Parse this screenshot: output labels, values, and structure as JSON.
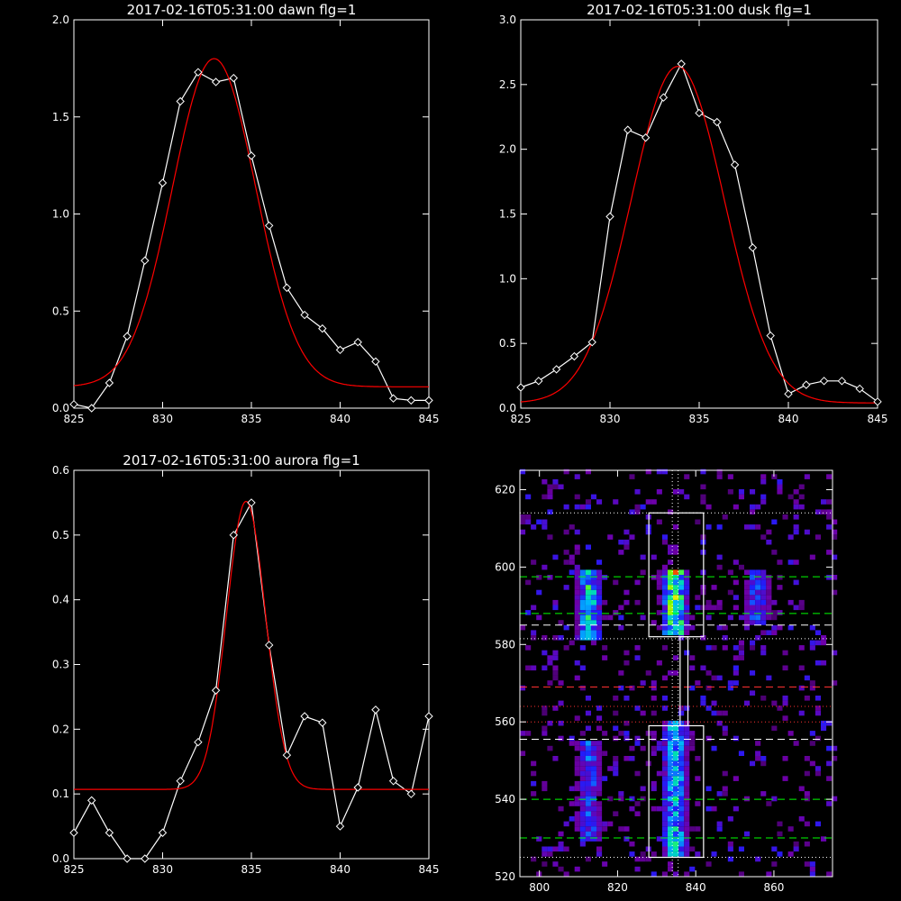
{
  "colors": {
    "background": "#000000",
    "axes": "#ffffff",
    "data_line": "#ffffff",
    "fit_line": "#ff0000"
  },
  "chart_data": [
    {
      "type": "line",
      "title": "2017-02-16T05:31:00 dawn flg=1",
      "xlim": [
        825,
        845
      ],
      "ylim": [
        0,
        2
      ],
      "xticks": [
        825,
        830,
        835,
        840,
        845
      ],
      "xtick_labels": [
        "825",
        "830",
        "835",
        "840",
        "845"
      ],
      "yticks": [
        0,
        0.5,
        1,
        1.5,
        2
      ],
      "ytick_labels": [
        "0.0",
        "0.5",
        "1.0",
        "1.5",
        "2.0"
      ],
      "series": [
        {
          "style": "white line with diamond markers",
          "x": [
            825,
            826,
            827,
            828,
            829,
            830,
            831,
            832,
            833,
            834,
            835,
            836,
            837,
            838,
            839,
            840,
            841,
            842,
            843,
            844,
            845
          ],
          "y": [
            0.02,
            0.0,
            0.13,
            0.37,
            0.76,
            1.16,
            1.58,
            1.73,
            1.68,
            1.7,
            1.3,
            0.94,
            0.62,
            0.48,
            0.41,
            0.3,
            0.34,
            0.24,
            0.05,
            0.04,
            0.04
          ]
        },
        {
          "style": "red gaussian fit",
          "model": {
            "peak_x": 832.9,
            "height": 1.69,
            "sigma": 2.35,
            "baseline": 0.11
          }
        }
      ]
    },
    {
      "type": "line",
      "title": "2017-02-16T05:31:00 dusk flg=1",
      "xlim": [
        825,
        845
      ],
      "ylim": [
        0,
        3
      ],
      "xticks": [
        825,
        830,
        835,
        840,
        845
      ],
      "xtick_labels": [
        "825",
        "830",
        "835",
        "840",
        "845"
      ],
      "yticks": [
        0,
        0.5,
        1,
        1.5,
        2,
        2.5,
        3
      ],
      "ytick_labels": [
        "0.0",
        "0.5",
        "1.0",
        "1.5",
        "2.0",
        "2.5",
        "3.0"
      ],
      "series": [
        {
          "style": "white line with diamond markers",
          "x": [
            825,
            826,
            827,
            828,
            829,
            830,
            831,
            832,
            833,
            834,
            835,
            836,
            837,
            838,
            839,
            840,
            841,
            842,
            843,
            844,
            845
          ],
          "y": [
            0.16,
            0.21,
            0.3,
            0.4,
            0.51,
            1.48,
            2.15,
            2.09,
            2.4,
            2.66,
            2.28,
            2.21,
            1.88,
            1.24,
            0.56,
            0.11,
            0.18,
            0.21,
            0.21,
            0.15,
            0.05
          ]
        },
        {
          "style": "red gaussian fit",
          "model": {
            "peak_x": 833.8,
            "height": 2.6,
            "sigma": 2.6,
            "baseline": 0.04
          }
        }
      ]
    },
    {
      "type": "line",
      "title": "2017-02-16T05:31:00 aurora flg=1",
      "xlim": [
        825,
        845
      ],
      "ylim": [
        0,
        0.6
      ],
      "xticks": [
        825,
        830,
        835,
        840,
        845
      ],
      "xtick_labels": [
        "825",
        "830",
        "835",
        "840",
        "845"
      ],
      "yticks": [
        0,
        0.1,
        0.2,
        0.3,
        0.4,
        0.5,
        0.6
      ],
      "ytick_labels": [
        "0.0",
        "0.1",
        "0.2",
        "0.3",
        "0.4",
        "0.5",
        "0.6"
      ],
      "series": [
        {
          "style": "white line with diamond markers",
          "x": [
            825,
            826,
            827,
            828,
            829,
            830,
            831,
            832,
            833,
            834,
            835,
            836,
            837,
            838,
            839,
            840,
            841,
            842,
            843,
            844,
            845
          ],
          "y": [
            0.04,
            0.09,
            0.04,
            0.0,
            0.0,
            0.04,
            0.12,
            0.18,
            0.26,
            0.5,
            0.55,
            0.33,
            0.16,
            0.22,
            0.21,
            0.05,
            0.11,
            0.23,
            0.12,
            0.1,
            0.22
          ]
        },
        {
          "style": "red gaussian fit",
          "model": {
            "peak_x": 834.7,
            "height": 0.445,
            "sigma": 1.1,
            "baseline": 0.107
          }
        }
      ]
    },
    {
      "type": "heatmap",
      "title": "",
      "xlim": [
        795,
        875
      ],
      "ylim": [
        520,
        625
      ],
      "xticks": [
        800,
        820,
        840,
        860
      ],
      "xtick_labels": [
        "800",
        "820",
        "840",
        "860"
      ],
      "yticks": [
        520,
        540,
        560,
        580,
        600,
        620
      ],
      "ytick_labels": [
        "520",
        "540",
        "560",
        "580",
        "600",
        "620"
      ],
      "colormap": "rainbow (purple-blue-cyan-green-yellow-red)",
      "emission_regions": [
        {
          "x_center": 834,
          "x_width": 4,
          "y_range": [
            582,
            598
          ],
          "intensity": "high"
        },
        {
          "x_center": 812,
          "x_width": 4,
          "y_range": [
            580,
            598
          ],
          "intensity": "medium"
        },
        {
          "x_center": 855,
          "x_width": 4,
          "y_range": [
            584,
            598
          ],
          "intensity": "low"
        },
        {
          "x_center": 834,
          "x_width": 4,
          "y_range": [
            525,
            560
          ],
          "intensity": "medium"
        },
        {
          "x_center": 812,
          "x_width": 4,
          "y_range": [
            528,
            555
          ],
          "intensity": "low"
        }
      ],
      "boxes": [
        {
          "x": [
            828,
            842
          ],
          "y": [
            582,
            614
          ]
        },
        {
          "x": [
            828,
            842
          ],
          "y": [
            525,
            559
          ]
        },
        {
          "x": [
            836,
            838
          ],
          "y": [
            559,
            582
          ]
        }
      ],
      "hlines": [
        {
          "y": 614,
          "style": "dotted",
          "color": "#ffffff"
        },
        {
          "y": 597.5,
          "style": "dashed",
          "color": "#00ff00"
        },
        {
          "y": 588,
          "style": "dashed",
          "color": "#00ff00"
        },
        {
          "y": 585,
          "style": "dashed",
          "color": "#ffffff"
        },
        {
          "y": 581.5,
          "style": "dotted",
          "color": "#ffffff"
        },
        {
          "y": 569,
          "style": "dashed",
          "color": "#ff3030"
        },
        {
          "y": 564,
          "style": "dotted",
          "color": "#ff3030"
        },
        {
          "y": 560,
          "style": "dotted",
          "color": "#ff3030"
        },
        {
          "y": 555.5,
          "style": "dashed",
          "color": "#ffffff"
        },
        {
          "y": 540,
          "style": "dashed",
          "color": "#00ff00"
        },
        {
          "y": 530,
          "style": "dashed",
          "color": "#00ff00"
        },
        {
          "y": 525,
          "style": "dotted",
          "color": "#ffffff"
        }
      ],
      "vlines": [
        {
          "x": 834,
          "style": "dotted",
          "color": "#ffffff"
        },
        {
          "x": 835.5,
          "style": "dotted",
          "color": "#ffffff"
        }
      ]
    }
  ]
}
